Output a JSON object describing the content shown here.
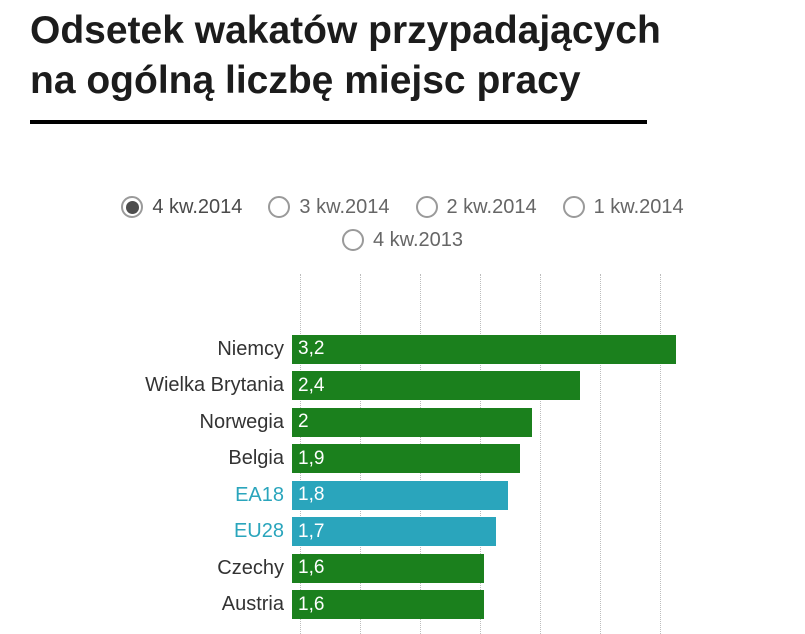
{
  "title": {
    "line1": "Odsetek wakatów przypadających",
    "line2": "na ogólną liczbę miejsc pracy"
  },
  "filters": {
    "options": [
      {
        "label": "4 kw.2014",
        "selected": true
      },
      {
        "label": "3 kw.2014",
        "selected": false
      },
      {
        "label": "2 kw.2014",
        "selected": false
      },
      {
        "label": "1 kw.2014",
        "selected": false
      },
      {
        "label": "4 kw.2013",
        "selected": false
      }
    ]
  },
  "chart_data": {
    "type": "bar",
    "orientation": "horizontal",
    "title": "Odsetek wakatów przypadających na ogólną liczbę miejsc pracy",
    "selected_period": "4 kw.2014",
    "categories": [
      "Niemcy",
      "Wielka Brytania",
      "Norwegia",
      "Belgia",
      "EA18",
      "EU28",
      "Czechy",
      "Austria"
    ],
    "values": [
      3.2,
      2.4,
      2,
      1.9,
      1.8,
      1.7,
      1.6,
      1.6
    ],
    "value_labels": [
      "3,2",
      "2,4",
      "2",
      "1,9",
      "1,8",
      "1,7",
      "1,6",
      "1,6"
    ],
    "series_colors": [
      "green",
      "green",
      "green",
      "green",
      "teal",
      "teal",
      "green",
      "green"
    ],
    "colors": {
      "green": "#1b801d",
      "teal": "#2aa5bc"
    },
    "xlim": [
      0,
      3.25
    ],
    "grid_step": 0.5,
    "grid": true,
    "legend": "none"
  }
}
